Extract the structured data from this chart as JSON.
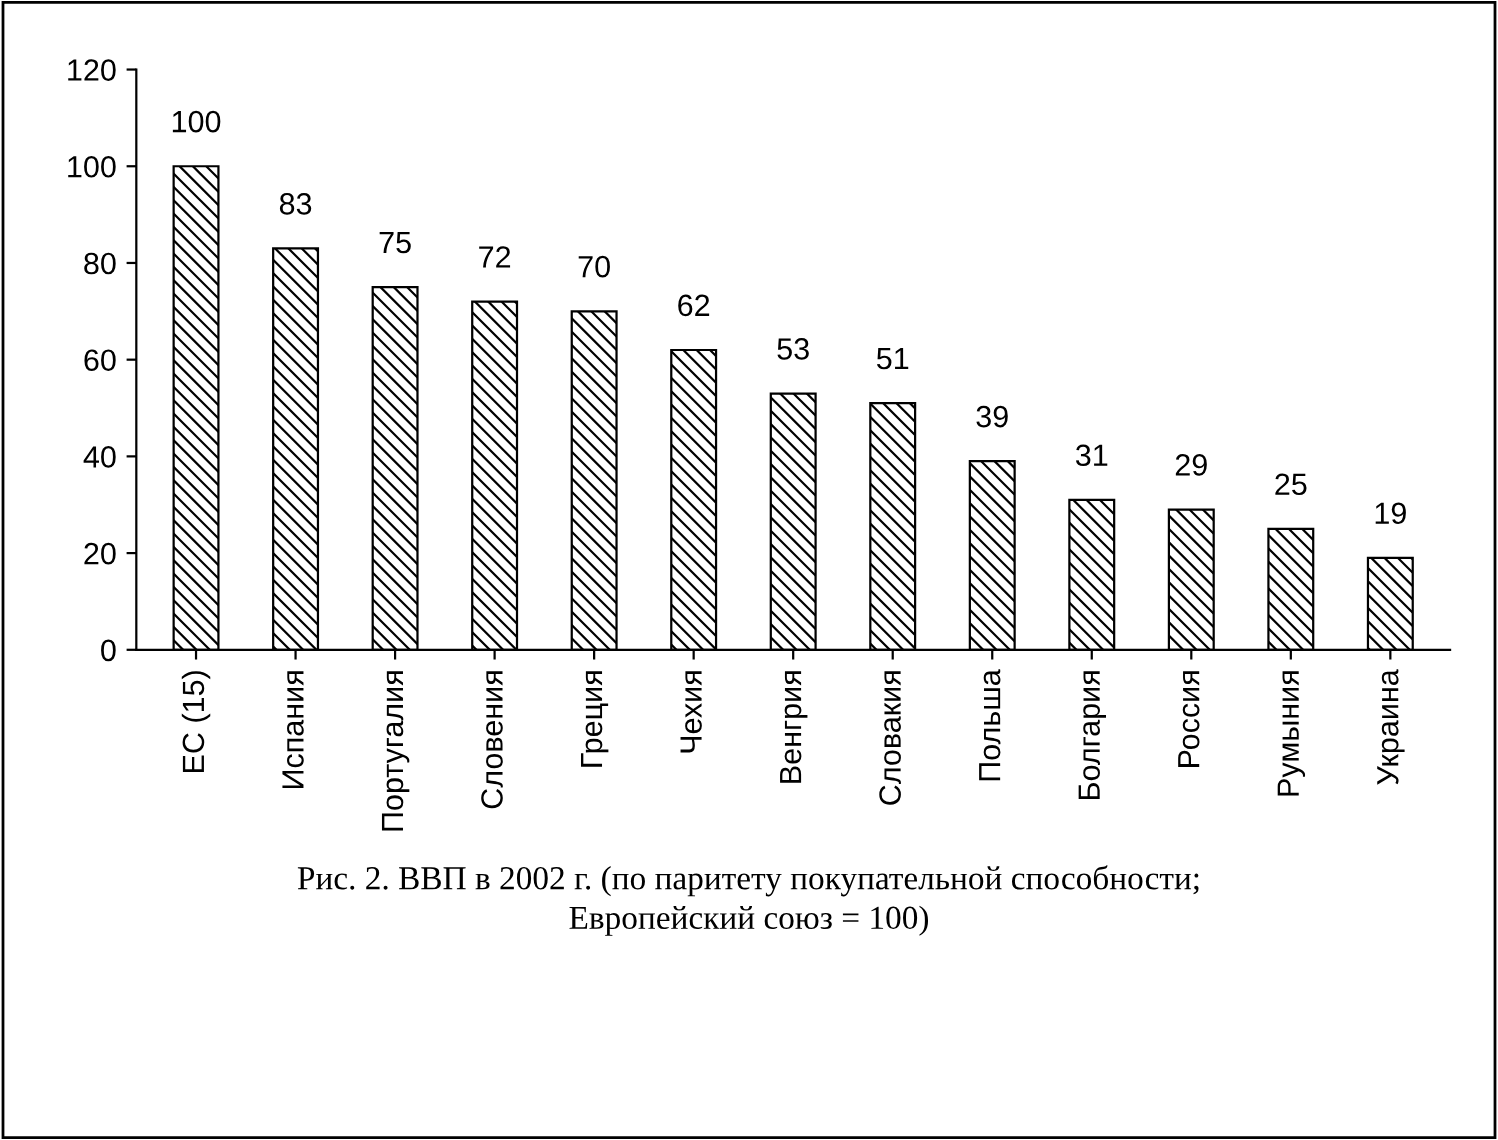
{
  "chart_data": {
    "type": "bar",
    "categories": [
      "ЕС (15)",
      "Испания",
      "Португалия",
      "Словения",
      "Греция",
      "Чехия",
      "Венгрия",
      "Словакия",
      "Польша",
      "Болгария",
      "Россия",
      "Румыния",
      "Украина"
    ],
    "values": [
      100,
      83,
      75,
      72,
      70,
      62,
      53,
      51,
      39,
      31,
      29,
      25,
      19
    ],
    "color": "#000000",
    "ylim": [
      0,
      120
    ],
    "yticks": [
      0,
      20,
      40,
      60,
      80,
      100,
      120
    ],
    "data_labels": true,
    "grid": false,
    "annotations": [
      "Рис. 2. ВВП в 2002 г. (по паритету покупательной способности;\nЕвропейский союз = 100)"
    ]
  }
}
